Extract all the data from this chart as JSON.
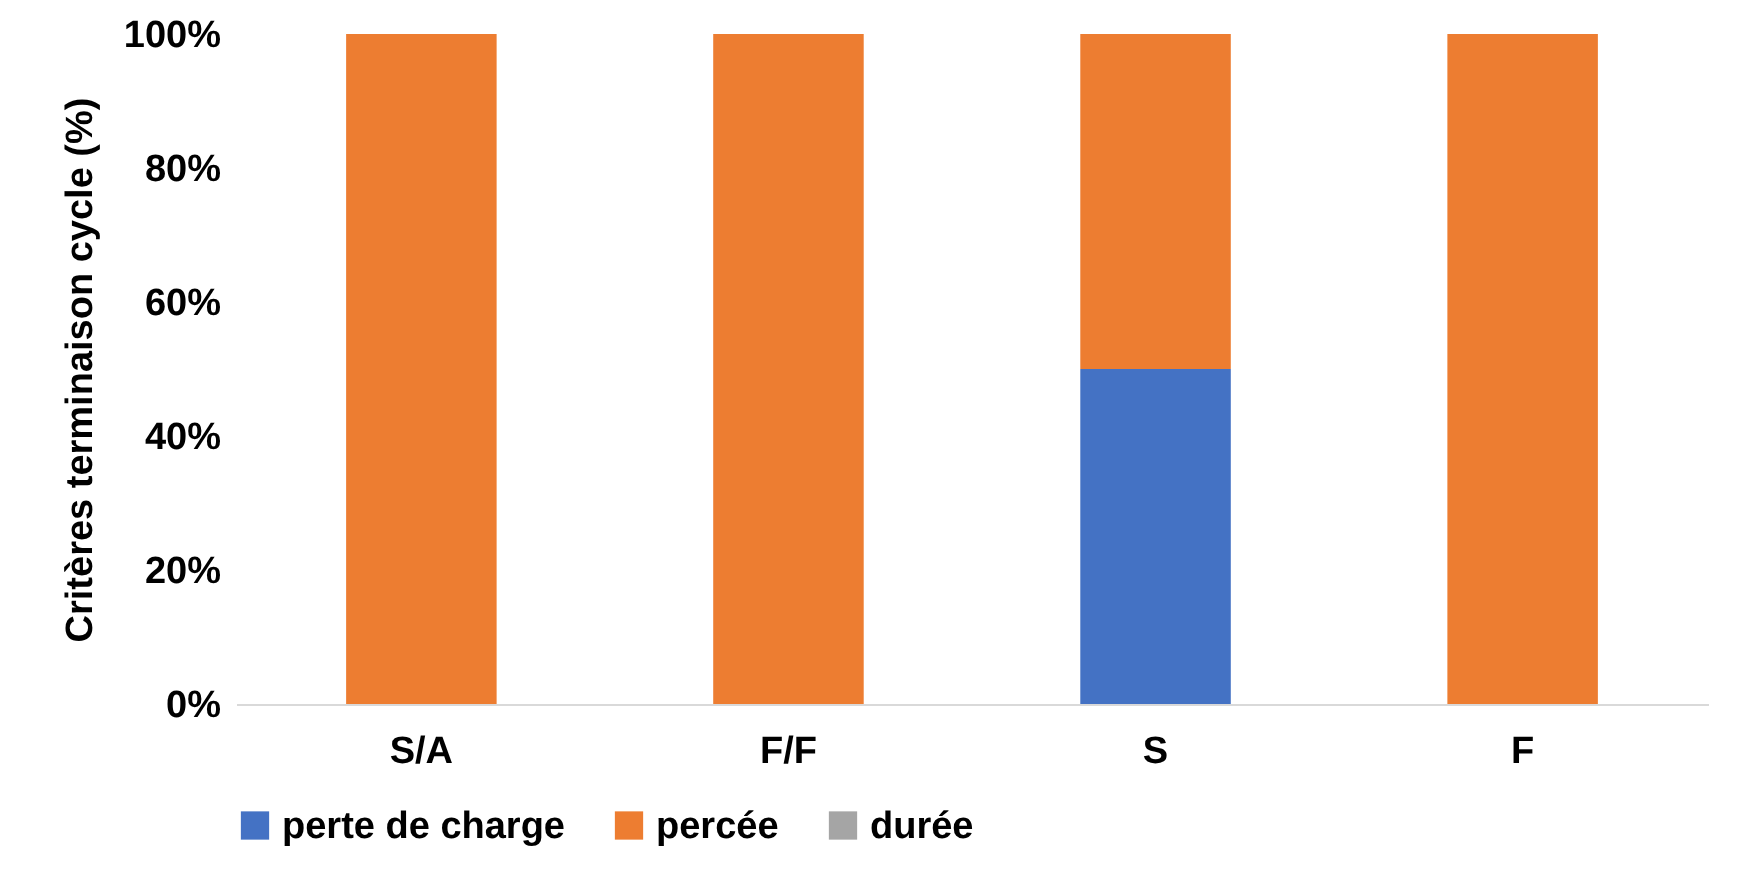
{
  "chart_data": {
    "type": "bar",
    "stacked": true,
    "ylabel": "Critères terminaison cycle (%)",
    "categories": [
      "S/A",
      "F/F",
      "S",
      "F"
    ],
    "series": [
      {
        "name": "perte de charge",
        "color": "#4472c4",
        "values": [
          0,
          0,
          50,
          0
        ]
      },
      {
        "name": "percée",
        "color": "#ed7d31",
        "values": [
          100,
          100,
          50,
          100
        ]
      },
      {
        "name": "durée",
        "color": "#a5a5a5",
        "values": [
          0,
          0,
          0,
          0
        ]
      }
    ],
    "ylim": [
      0,
      100
    ],
    "yticks": [
      {
        "value": 0,
        "label": "0%"
      },
      {
        "value": 20,
        "label": "20%"
      },
      {
        "value": 40,
        "label": "40%"
      },
      {
        "value": 60,
        "label": "60%"
      },
      {
        "value": 80,
        "label": "80%"
      },
      {
        "value": 100,
        "label": "100%"
      }
    ],
    "grid": false,
    "legend": "bottom"
  }
}
